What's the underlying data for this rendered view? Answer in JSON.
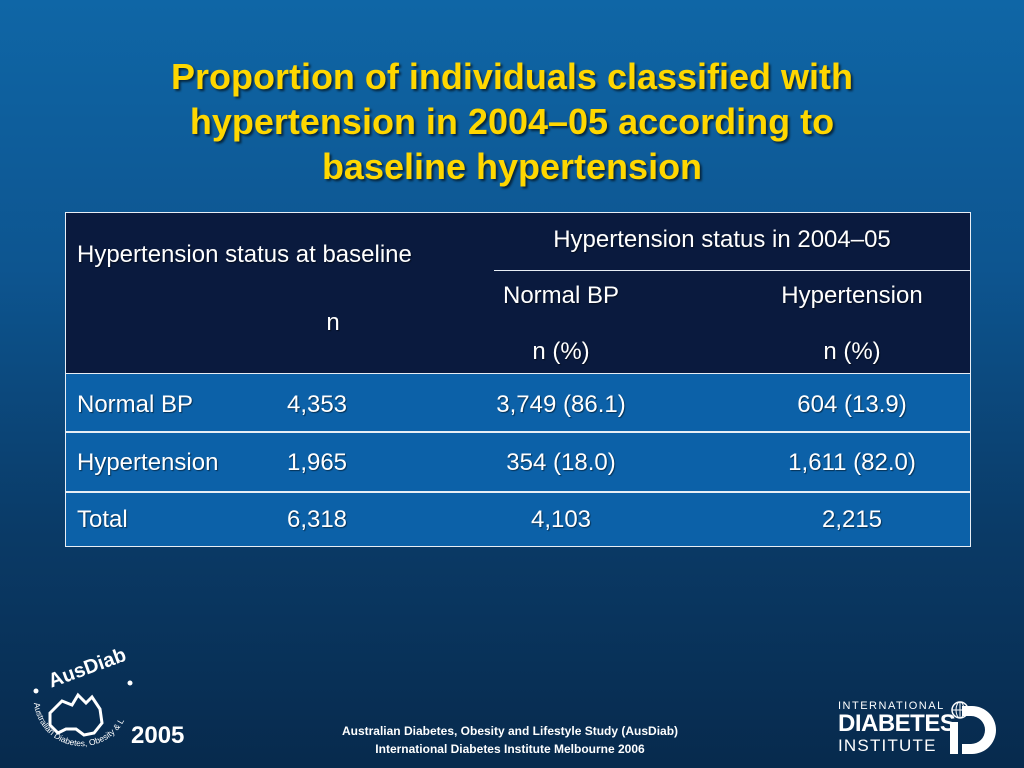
{
  "slide": {
    "title_lines": [
      "Proportion of individuals classified with",
      "hypertension in 2004–05 according to",
      "baseline hypertension"
    ]
  },
  "table": {
    "header": {
      "baseline": "Hypertension status at baseline",
      "n": "n",
      "followup": "Hypertension status in 2004–05",
      "normal_bp": "Normal BP",
      "hypertension": "Hypertension",
      "n_pct_1": "n (%)",
      "n_pct_2": "n (%)"
    },
    "rows": [
      {
        "label": "Normal BP",
        "n": "4,353",
        "normal": "3,749 (86.1)",
        "hyper": "604 (13.9)"
      },
      {
        "label": "Hypertension",
        "n": "1,965",
        "normal": "354 (18.0)",
        "hyper": "1,611 (82.0)"
      },
      {
        "label": "Total",
        "n": "6,318",
        "normal": "4,103",
        "hyper": "2,215"
      }
    ]
  },
  "footer": {
    "line1": "Australian Diabetes, Obesity and Lifestyle Study (AusDiab)",
    "line2": "International Diabetes Institute Melbourne 2006",
    "year": "2005"
  },
  "logos": {
    "ausdiab_wordmark": "AusDiab",
    "ausdiab_ring": "Australian Diabetes, Obesity & Lifestyle Study",
    "idi_line1": "INTERNATIONAL",
    "idi_line2": "DIABETES",
    "idi_line3": "INSTITUTE"
  },
  "colors": {
    "title": "#ffd700",
    "header_bg": "#0a1a3e",
    "row_bg": "#0c61a8"
  }
}
